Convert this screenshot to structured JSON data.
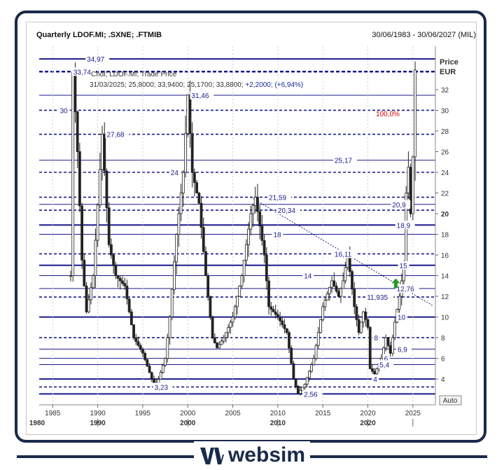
{
  "header": {
    "title": "Quarterly LDOF.MI; .SXNE; .FTMIB",
    "date_range": "30/06/1983 - 30/06/2027 (MIL)"
  },
  "brand": {
    "name": "websim"
  },
  "chart_data": {
    "type": "candlestick",
    "price_axis_label": [
      "Price",
      "EUR"
    ],
    "auto_label": "Auto",
    "info": {
      "line1": "Cndl; LDOF.MI; Trade Price",
      "line2a": "31/03/2025; 25,8000; 33,9400; 25,1700; 33,8800; ",
      "line2b": "+2,2000; (+6,94%)"
    },
    "pct_label": "100,0%",
    "ylim": [
      1.5,
      36.2
    ],
    "y_ticks": [
      4,
      6,
      8,
      10,
      12,
      14,
      16,
      18,
      20,
      22,
      24,
      26,
      28,
      30,
      32
    ],
    "y_tick_labels": [
      "4",
      "6",
      "8",
      "10",
      "12",
      "14",
      "16",
      "18",
      "20",
      "22",
      "24",
      "26",
      "28",
      "30",
      "32"
    ],
    "xlim": [
      1983.5,
      2027.5
    ],
    "x_ticks": [
      1985,
      1990,
      1995,
      2000,
      2005,
      2010,
      2015,
      2020,
      2025
    ],
    "x_tick_labels": [
      "1985",
      "1990",
      "1995",
      "2000",
      "2005",
      "2010",
      "2015",
      "2020",
      "2025"
    ],
    "decades": [
      {
        "x": 1980,
        "label": "1980"
      },
      {
        "x": 1990,
        "label": "1990"
      },
      {
        "x": 2000,
        "label": "2000"
      },
      {
        "x": 2010,
        "label": "2010"
      },
      {
        "x": 2020,
        "label": "2020"
      }
    ],
    "levels": [
      {
        "value": 34.97,
        "label": "34,97",
        "style": "thick",
        "lx": 1988.8
      },
      {
        "value": 33.74,
        "label": "33,74",
        "style": "dashed-thick",
        "lx": 1987.3
      },
      {
        "value": 31.46,
        "label": "31,46",
        "style": "thin",
        "lx": 2000.4
      },
      {
        "value": 30,
        "label": "30",
        "style": "dashed",
        "lx": 1985.8
      },
      {
        "value": 27.68,
        "label": "27,68",
        "style": "dashed",
        "lx": 1991.0
      },
      {
        "value": 25.17,
        "label": "25,17",
        "style": "thin",
        "lx": 2016.3
      },
      {
        "value": 24,
        "label": "24",
        "style": "dashed",
        "lx": 1998.1
      },
      {
        "value": 21.59,
        "label": "21,59",
        "style": "dashed",
        "lx": 2009.0
      },
      {
        "value": 20.9,
        "label": "20,9",
        "style": "thin",
        "lx": 2022.7
      },
      {
        "value": 20.34,
        "label": "20,34",
        "style": "dashed",
        "lx": 2010.0
      },
      {
        "value": 18.9,
        "label": "18,9",
        "style": "thick",
        "lx": 2023.2
      },
      {
        "value": 18,
        "label": "18",
        "style": "thin",
        "lx": 2009.5
      },
      {
        "value": 16.11,
        "label": "16,11",
        "style": "dashed",
        "lx": 2016.3
      },
      {
        "value": 15,
        "label": "15",
        "style": "thick",
        "lx": 2023.5
      },
      {
        "value": 14,
        "label": "14",
        "style": "thin",
        "lx": 2012.9
      },
      {
        "value": 12.76,
        "label": "12,76",
        "style": "thin",
        "lx": 2023.2
      },
      {
        "value": 11.935,
        "label": "11,935",
        "style": "dashed",
        "lx": 2019.9
      },
      {
        "value": 10,
        "label": "10",
        "style": "thick",
        "lx": 2023.3
      },
      {
        "value": 8,
        "label": "8",
        "style": "dashed",
        "lx": 2020.7
      },
      {
        "value": 6.9,
        "label": "6,9",
        "style": "thin",
        "lx": 2023.3
      },
      {
        "value": 6,
        "label": "6",
        "style": "thin",
        "lx": 2021.8
      },
      {
        "value": 5.4,
        "label": "5,4",
        "style": "thin",
        "lx": 2021.3
      },
      {
        "value": 4,
        "label": "4",
        "style": "thick",
        "lx": 2020.6
      },
      {
        "value": 3.23,
        "label": "3,23",
        "style": "dashed",
        "lx": 1996.3
      },
      {
        "value": 2.56,
        "label": "2,56",
        "style": "thick",
        "lx": 2012.9
      }
    ],
    "trendline": {
      "x1": 2007.0,
      "y1": 21.6,
      "x2": 2027.2,
      "y2": 11.1
    },
    "signal_arrow": {
      "x": 2023.1,
      "y": 13.2
    },
    "anchors": [
      [
        1987.0,
        14.0
      ],
      [
        1987.25,
        33.7
      ],
      [
        1987.75,
        26.0
      ],
      [
        1988.25,
        15.5
      ],
      [
        1988.75,
        10.5
      ],
      [
        1989.5,
        14.0
      ],
      [
        1990.5,
        27.7
      ],
      [
        1991.25,
        17.0
      ],
      [
        1992.0,
        14.0
      ],
      [
        1993.0,
        13.0
      ],
      [
        1994.0,
        8.0
      ],
      [
        1995.0,
        6.5
      ],
      [
        1996.0,
        4.0
      ],
      [
        1996.5,
        3.3
      ],
      [
        1997.5,
        6.0
      ],
      [
        1998.0,
        10.0
      ],
      [
        1998.75,
        18.0
      ],
      [
        1999.5,
        24.0
      ],
      [
        2000.0,
        31.5
      ],
      [
        2000.5,
        24.0
      ],
      [
        2001.25,
        21.0
      ],
      [
        2002.0,
        14.0
      ],
      [
        2002.75,
        8.0
      ],
      [
        2003.25,
        7.0
      ],
      [
        2004.0,
        8.0
      ],
      [
        2005.0,
        10.0
      ],
      [
        2006.0,
        14.0
      ],
      [
        2007.0,
        20.0
      ],
      [
        2007.5,
        21.6
      ],
      [
        2008.5,
        16.0
      ],
      [
        2009.0,
        11.0
      ],
      [
        2010.0,
        10.0
      ],
      [
        2011.0,
        8.5
      ],
      [
        2011.75,
        4.0
      ],
      [
        2012.25,
        2.6
      ],
      [
        2013.0,
        3.5
      ],
      [
        2014.0,
        6.0
      ],
      [
        2015.0,
        11.0
      ],
      [
        2016.0,
        13.5
      ],
      [
        2016.75,
        12.0
      ],
      [
        2017.25,
        13.5
      ],
      [
        2017.75,
        16.1
      ],
      [
        2018.5,
        11.0
      ],
      [
        2019.0,
        8.5
      ],
      [
        2019.5,
        10.5
      ],
      [
        2020.0,
        9.0
      ],
      [
        2020.25,
        5.0
      ],
      [
        2020.75,
        4.5
      ],
      [
        2021.5,
        6.0
      ],
      [
        2022.0,
        8.0
      ],
      [
        2022.5,
        6.5
      ],
      [
        2023.0,
        9.5
      ],
      [
        2023.5,
        12.0
      ],
      [
        2024.0,
        15.0
      ],
      [
        2024.25,
        22.0
      ],
      [
        2024.5,
        24.5
      ],
      [
        2024.75,
        20.0
      ],
      [
        2025.0,
        25.5
      ],
      [
        2025.25,
        33.9
      ]
    ]
  }
}
